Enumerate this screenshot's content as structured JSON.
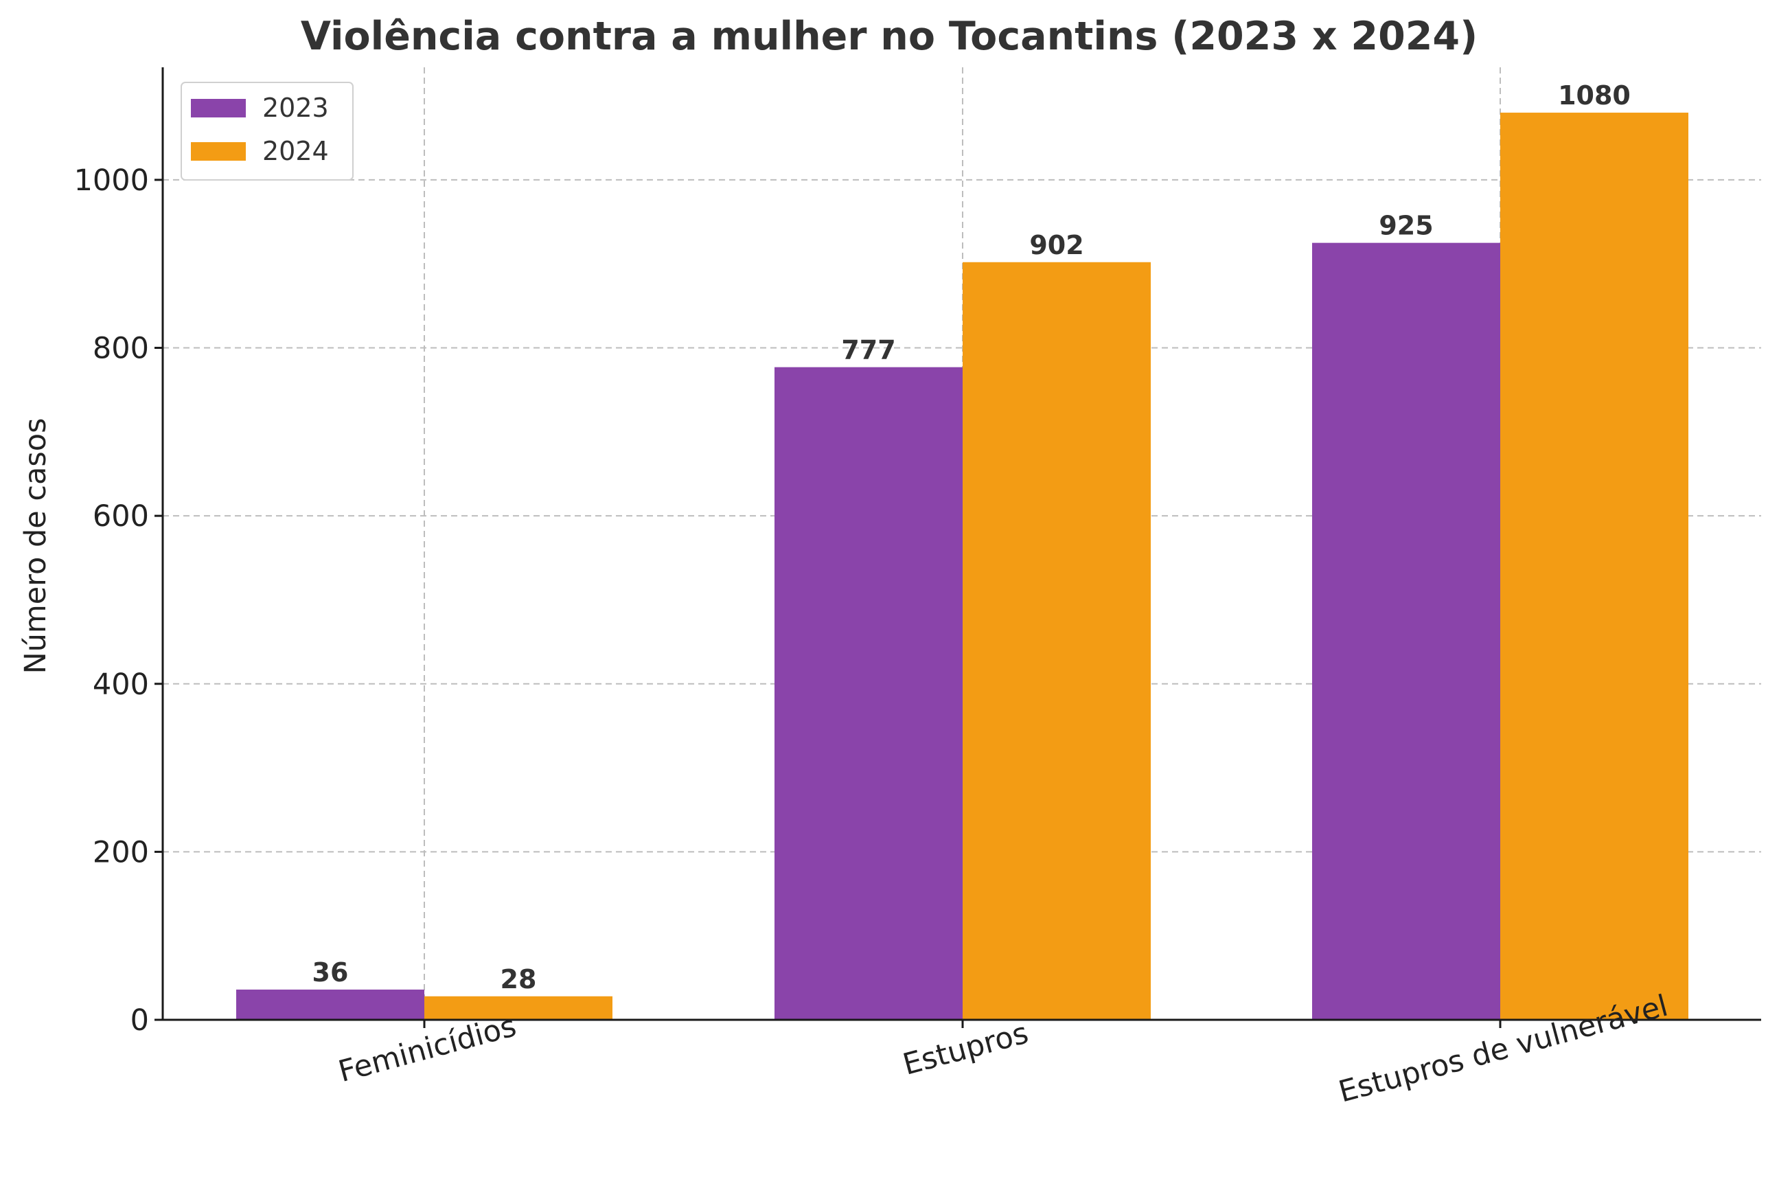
{
  "chart_data": {
    "type": "bar",
    "title": "Violência contra a mulher no Tocantins (2023 x 2024)",
    "xlabel": "",
    "ylabel": "Número de casos",
    "categories": [
      "Feminicídios",
      "Estupros",
      "Estupros de vulnerável"
    ],
    "series": [
      {
        "name": "2023",
        "color": "#8a44aa",
        "values": [
          36,
          777,
          925
        ]
      },
      {
        "name": "2024",
        "color": "#f39c14",
        "values": [
          28,
          902,
          1080
        ]
      }
    ],
    "ylim": [
      0,
      1134
    ],
    "yticks": [
      0,
      200,
      400,
      600,
      800,
      1000
    ],
    "grid": true,
    "legend_position": "top-left",
    "xtick_rotation_deg": -15,
    "value_labels": true
  }
}
